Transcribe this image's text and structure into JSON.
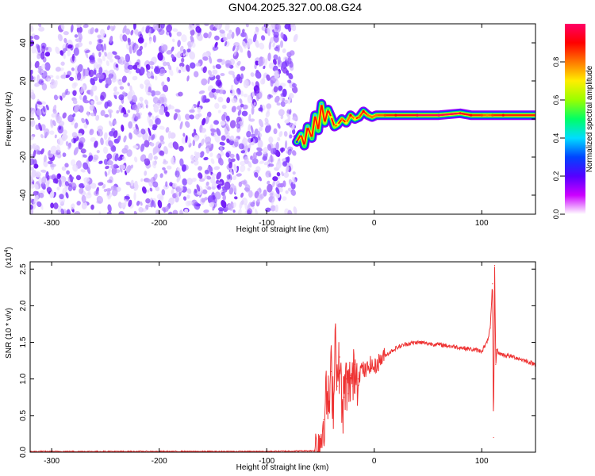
{
  "title": "GN04.2025.327.00.08.G24",
  "chart_data": [
    {
      "type": "heatmap",
      "title": "GN04.2025.327.00.08.G24",
      "xlabel": "Height of straight line (km)",
      "ylabel": "Frequency (Hz)",
      "xlim": [
        -320,
        150
      ],
      "ylim": [
        -50,
        50
      ],
      "x_ticks": [
        -300,
        -200,
        -100,
        0,
        100
      ],
      "x_tick_labels": [
        "-300",
        "-200",
        "-100",
        "0",
        "100"
      ],
      "y_ticks": [
        -40,
        -20,
        0,
        20,
        40
      ],
      "y_tick_labels": [
        "-40",
        "-20",
        "0",
        "20",
        "40"
      ],
      "colorbar": {
        "label": "Normalized spectral amplitude",
        "range": [
          0,
          1
        ],
        "ticks": [
          0.0,
          0.2,
          0.4,
          0.6,
          0.8
        ],
        "tick_labels": [
          "0.0",
          "0.2",
          "0.4",
          "0.6",
          "0.8"
        ],
        "colors": [
          "#ffffff",
          "#cc00ff",
          "#5500ff",
          "#0044ff",
          "#00ddff",
          "#00ff66",
          "#99ff00",
          "#ffee00",
          "#ff7700",
          "#ff0000",
          "#ff0066"
        ]
      },
      "noise_region_x": [
        -320,
        -73
      ],
      "signal_ridge": {
        "x": [
          -72,
          -68,
          -65,
          -62,
          -58,
          -55,
          -52,
          -49,
          -46,
          -43,
          -40,
          -37,
          -34,
          -30,
          -26,
          -22,
          -18,
          -14,
          -10,
          -6,
          -2,
          2,
          10,
          20,
          40,
          60,
          80,
          90,
          100,
          105,
          110,
          120,
          150
        ],
        "frequency": [
          -12,
          -8,
          -14,
          -4,
          -10,
          2,
          -6,
          8,
          -2,
          5,
          1,
          -4,
          -3,
          0,
          -2,
          2,
          0,
          1,
          4,
          2,
          1,
          2,
          2,
          2,
          2,
          2,
          3,
          2,
          2,
          2,
          2,
          2,
          2
        ],
        "amplitude": [
          0.3,
          0.4,
          0.5,
          0.4,
          0.5,
          0.4,
          0.5,
          0.4,
          0.6,
          0.5,
          0.7,
          0.6,
          0.7,
          0.8,
          0.7,
          0.9,
          0.7,
          0.8,
          0.9,
          0.8,
          0.8,
          0.8,
          0.85,
          0.9,
          0.95,
          1.0,
          0.95,
          0.9,
          0.85,
          0.8,
          0.85,
          0.9,
          0.85
        ]
      }
    },
    {
      "type": "line",
      "xlabel": "Height of straight line (km)",
      "ylabel": "SNR (10 * v/v)",
      "y_multiplier": "(x10",
      "y_multiplier_exp": "4",
      "y_multiplier_close": ")",
      "xlim": [
        -320,
        150
      ],
      "ylim": [
        0,
        2.6
      ],
      "x_ticks": [
        -300,
        -200,
        -100,
        0,
        100
      ],
      "x_tick_labels": [
        "-300",
        "-200",
        "-100",
        "0",
        "100"
      ],
      "y_ticks": [
        0,
        0.5,
        1.0,
        1.5,
        2.0,
        2.5
      ],
      "y_tick_labels": [
        "0.0",
        "0.5",
        "1.0",
        "1.5",
        "2.0",
        "2.5"
      ],
      "line_color": "#ee3333",
      "series": [
        {
          "x": [
            -320,
            -200,
            -100,
            -55,
            -50,
            -47,
            -44,
            -42,
            -40,
            -38,
            -36,
            -34,
            -32,
            -30,
            -28,
            -26,
            -24,
            -22,
            -20,
            -18,
            -15,
            -12,
            -8,
            -4,
            0,
            5,
            10,
            20,
            30,
            40,
            60,
            80,
            100,
            105,
            108,
            110,
            111,
            112,
            113,
            114,
            116,
            120,
            130,
            150
          ],
          "y": [
            0.01,
            0.01,
            0.01,
            0.02,
            0.15,
            0.45,
            0.8,
            0.6,
            1.1,
            0.7,
            1.7,
            0.9,
            1.3,
            0.55,
            0.75,
            1.0,
            0.8,
            1.05,
            0.9,
            1.2,
            1.0,
            1.15,
            1.1,
            1.2,
            1.15,
            1.25,
            1.32,
            1.42,
            1.48,
            1.5,
            1.47,
            1.43,
            1.38,
            1.5,
            1.7,
            2.3,
            0.2,
            2.55,
            1.2,
            1.4,
            1.35,
            1.33,
            1.3,
            1.2
          ]
        }
      ]
    }
  ]
}
